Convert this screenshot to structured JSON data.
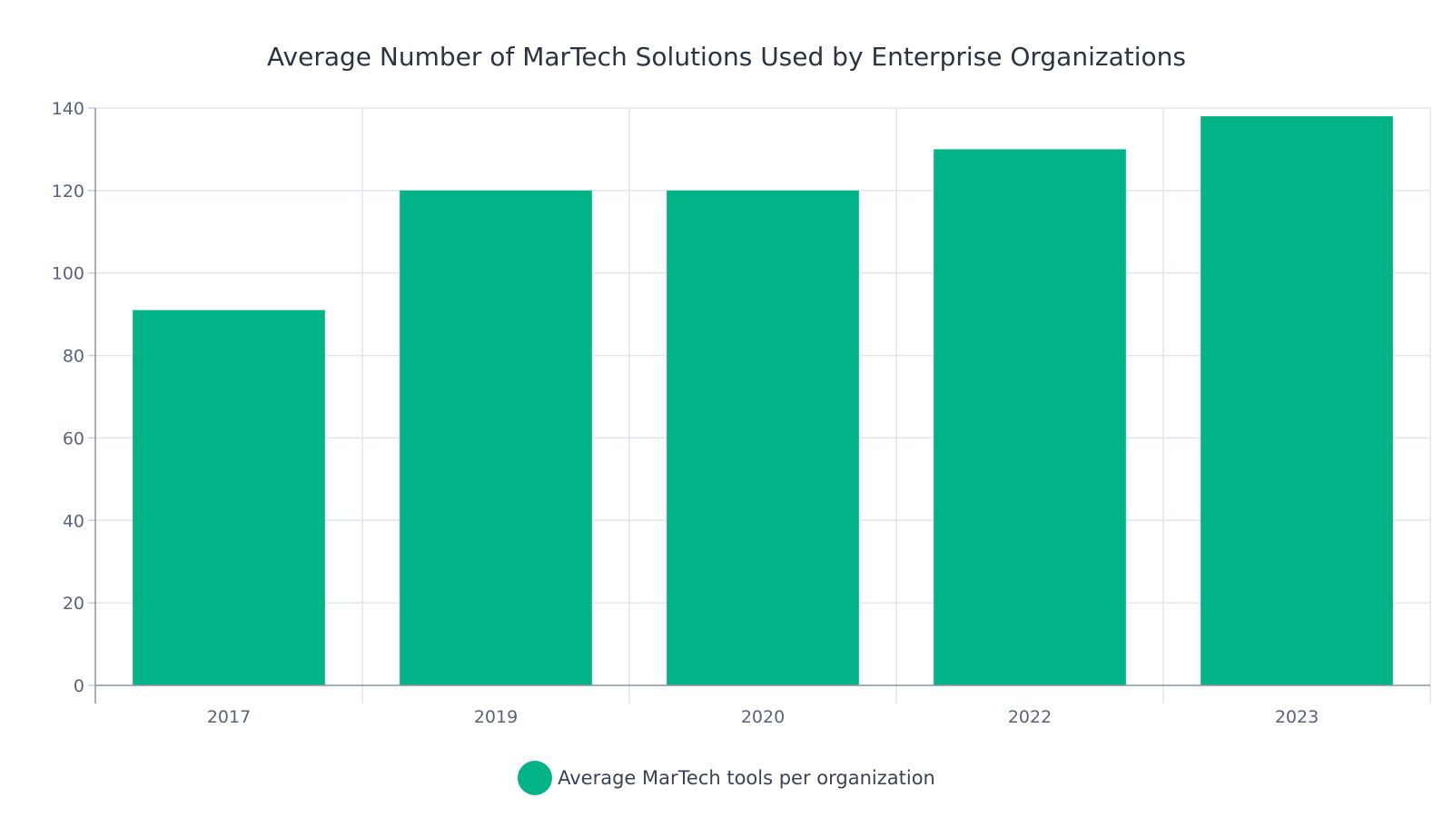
{
  "chart_data": {
    "type": "bar",
    "title": "Average Number of MarTech Solutions Used by Enterprise Organizations",
    "categories": [
      "2017",
      "2019",
      "2020",
      "2022",
      "2023"
    ],
    "series": [
      {
        "name": "Average MarTech tools per organization",
        "values": [
          91,
          120,
          120,
          130,
          138
        ],
        "color": "#02b388"
      }
    ],
    "ylim": [
      0,
      140
    ],
    "yticks": [
      0,
      20,
      40,
      60,
      80,
      100,
      120,
      140
    ],
    "grid": true,
    "legend": "bottom-center",
    "xlabel": "",
    "ylabel": ""
  }
}
